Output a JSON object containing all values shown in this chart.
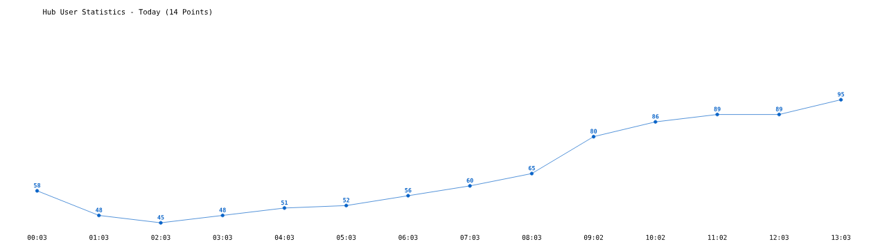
{
  "chart_data": {
    "type": "line",
    "title": "Hub User Statistics - Today (14 Points)",
    "categories": [
      "00:03",
      "01:03",
      "02:03",
      "03:03",
      "04:03",
      "05:03",
      "06:03",
      "07:03",
      "08:03",
      "09:02",
      "10:02",
      "11:02",
      "12:03",
      "13:03"
    ],
    "values": [
      58,
      48,
      45,
      48,
      51,
      52,
      56,
      60,
      65,
      80,
      86,
      89,
      89,
      95
    ],
    "color": "#0a64c8",
    "marker": "circle",
    "data_labels": true,
    "tick_labels": "x"
  }
}
